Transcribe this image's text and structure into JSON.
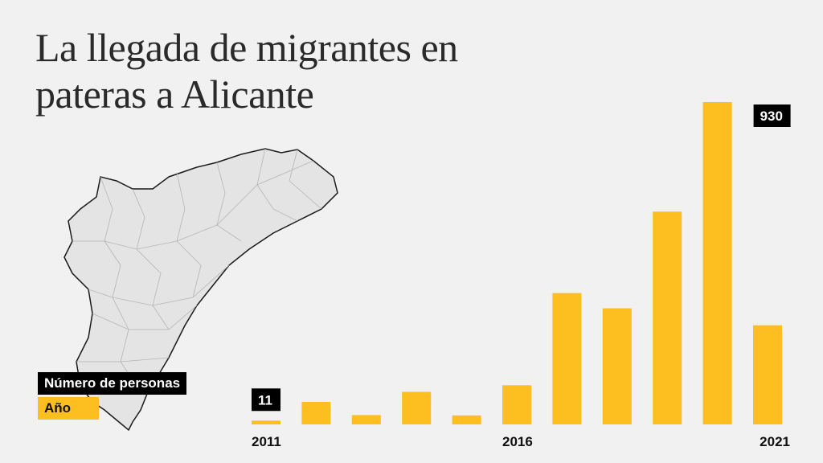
{
  "title": "La llegada de migrantes en pateras a Alicante",
  "legend": {
    "value_label": "Número de personas",
    "year_label": "Año"
  },
  "colors": {
    "bar": "#fdbe1f",
    "label_bg": "#000000",
    "background": "#f1f1f1"
  },
  "chart_data": {
    "type": "bar",
    "title": "La llegada de migrantes en pateras a Alicante",
    "categories": [
      "2011",
      "2012",
      "2013",
      "2014",
      "2015",
      "2016",
      "2017",
      "2018",
      "2019",
      "2020",
      "2021"
    ],
    "values": [
      11,
      65,
      27,
      94,
      26,
      113,
      379,
      335,
      614,
      930,
      286
    ],
    "tick_labels": [
      "2011",
      "2016",
      "2021"
    ],
    "data_labels": [
      {
        "category": "2011",
        "text": "11"
      },
      {
        "category": "2020",
        "text": "930"
      }
    ],
    "ylim": [
      0,
      930
    ],
    "grid": false,
    "legend_position": "bottom-left"
  }
}
